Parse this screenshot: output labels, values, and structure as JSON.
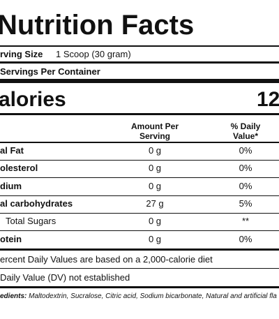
{
  "title": "Nutrition Facts",
  "serving": {
    "label": "rving Size",
    "value": "1 Scoop (30 gram)"
  },
  "servings_per_container": "Servings Per Container",
  "calories": {
    "label": "alories",
    "value": "12"
  },
  "table": {
    "header": [
      "Amount Per\nServing",
      "% Daily\nValue*"
    ],
    "rows": [
      [
        "al Fat",
        "0 g",
        "0%"
      ],
      [
        "olesterol",
        "0 g",
        "0%"
      ],
      [
        "dium",
        "0 g",
        "0%"
      ],
      [
        "al carbohydrates",
        "27 g",
        "5%"
      ],
      [
        "Total Sugars",
        "0 g",
        "**"
      ],
      [
        "otein",
        "0 g",
        "0%"
      ]
    ]
  },
  "footnotes": [
    "ercent Daily Values are based on a 2,000-calorie diet",
    "Daily Value (DV) not established"
  ],
  "ingredients": {
    "label": "edients:",
    "text": "Maltodextrin, Sucralose, Citric acid, Sodium bicarbonate, Natural and artificial fla"
  }
}
